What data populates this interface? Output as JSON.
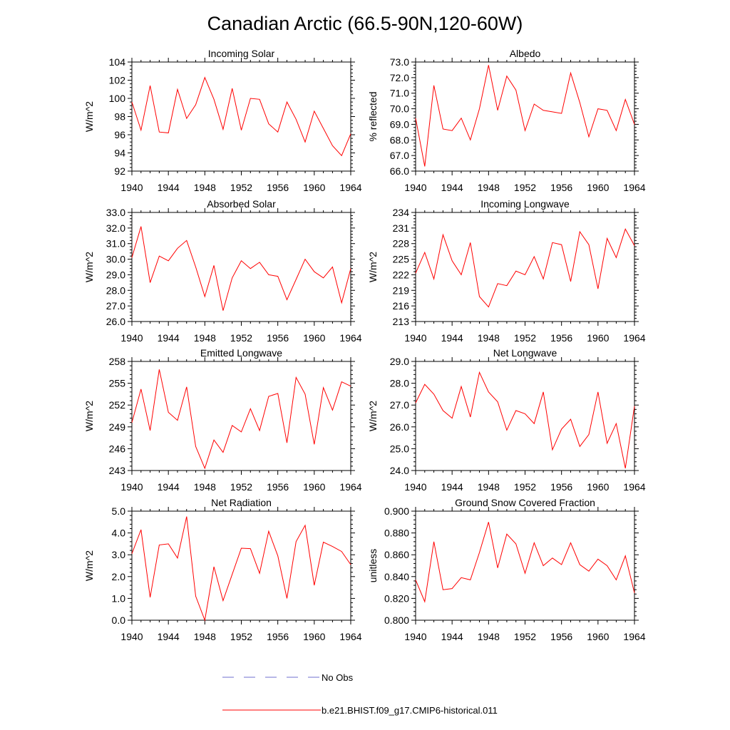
{
  "title": "Canadian Arctic (66.5-90N,120-60W)",
  "colors": {
    "model": "#ff0000",
    "obs": "#6f6fcf",
    "axis": "#000000"
  },
  "legend": {
    "obs_label": "No Obs",
    "model_label": "b.e21.BHIST.f09_g17.CMIP6-historical.011"
  },
  "chart_data": [
    {
      "type": "line",
      "title": "Incoming Solar",
      "ylabel": "W/m^2",
      "xlim": [
        1940,
        1964
      ],
      "ylim": [
        92,
        104
      ],
      "yticks": [
        "92",
        "94",
        "96",
        "98",
        "100",
        "102",
        "104"
      ],
      "xticks": [
        "1940",
        "1944",
        "1948",
        "1952",
        "1956",
        "1960",
        "1964"
      ],
      "x": [
        1940,
        1941,
        1942,
        1943,
        1944,
        1945,
        1946,
        1947,
        1948,
        1949,
        1950,
        1951,
        1952,
        1953,
        1954,
        1955,
        1956,
        1957,
        1958,
        1959,
        1960,
        1961,
        1962,
        1963,
        1964
      ],
      "series": [
        {
          "name": "b.e21.BHIST.f09_g17.CMIP6-historical.011",
          "values": [
            99.6,
            96.5,
            101.4,
            96.3,
            96.2,
            101.0,
            97.8,
            99.3,
            102.3,
            99.9,
            96.6,
            101.1,
            96.5,
            100.0,
            99.9,
            97.2,
            96.3,
            99.6,
            97.7,
            95.2,
            98.6,
            96.7,
            94.8,
            93.7,
            96.1
          ]
        }
      ]
    },
    {
      "type": "line",
      "title": "Albedo",
      "ylabel": "% reflected",
      "xlim": [
        1940,
        1964
      ],
      "ylim": [
        66,
        73
      ],
      "yticks": [
        "66.0",
        "67.0",
        "68.0",
        "69.0",
        "70.0",
        "71.0",
        "72.0",
        "73.0"
      ],
      "xticks": [
        "1940",
        "1944",
        "1948",
        "1952",
        "1956",
        "1960",
        "1964"
      ],
      "x": [
        1940,
        1941,
        1942,
        1943,
        1944,
        1945,
        1946,
        1947,
        1948,
        1949,
        1950,
        1951,
        1952,
        1953,
        1954,
        1955,
        1956,
        1957,
        1958,
        1959,
        1960,
        1961,
        1962,
        1963,
        1964
      ],
      "series": [
        {
          "name": "b.e21.BHIST.f09_g17.CMIP6-historical.011",
          "values": [
            69.4,
            66.3,
            71.5,
            68.7,
            68.6,
            69.4,
            68.0,
            70.0,
            72.8,
            69.9,
            72.1,
            71.2,
            68.6,
            70.3,
            69.9,
            69.8,
            69.7,
            72.3,
            70.4,
            68.2,
            70.0,
            69.9,
            68.6,
            70.6,
            69.0
          ]
        }
      ]
    },
    {
      "type": "line",
      "title": "Absorbed Solar",
      "ylabel": "W/m^2",
      "xlim": [
        1940,
        1964
      ],
      "ylim": [
        26,
        33
      ],
      "yticks": [
        "26.0",
        "27.0",
        "28.0",
        "29.0",
        "30.0",
        "31.0",
        "32.0",
        "33.0"
      ],
      "xticks": [
        "1940",
        "1944",
        "1948",
        "1952",
        "1956",
        "1960",
        "1964"
      ],
      "x": [
        1940,
        1941,
        1942,
        1943,
        1944,
        1945,
        1946,
        1947,
        1948,
        1949,
        1950,
        1951,
        1952,
        1953,
        1954,
        1955,
        1956,
        1957,
        1958,
        1959,
        1960,
        1961,
        1962,
        1963,
        1964
      ],
      "series": [
        {
          "name": "b.e21.BHIST.f09_g17.CMIP6-historical.011",
          "values": [
            30.1,
            32.1,
            28.5,
            30.2,
            29.9,
            30.7,
            31.2,
            29.5,
            27.6,
            29.6,
            26.7,
            28.8,
            29.9,
            29.4,
            29.8,
            29.0,
            28.9,
            27.4,
            28.7,
            30.0,
            29.2,
            28.8,
            29.5,
            27.2,
            29.4
          ]
        }
      ]
    },
    {
      "type": "line",
      "title": "Incoming Longwave",
      "ylabel": "W/m^2",
      "xlim": [
        1940,
        1964
      ],
      "ylim": [
        213,
        234
      ],
      "yticks": [
        "213",
        "216",
        "219",
        "222",
        "225",
        "228",
        "231",
        "234"
      ],
      "xticks": [
        "1940",
        "1944",
        "1948",
        "1952",
        "1956",
        "1960",
        "1964"
      ],
      "x": [
        1940,
        1941,
        1942,
        1943,
        1944,
        1945,
        1946,
        1947,
        1948,
        1949,
        1950,
        1951,
        1952,
        1953,
        1954,
        1955,
        1956,
        1957,
        1958,
        1959,
        1960,
        1961,
        1962,
        1963,
        1964
      ],
      "series": [
        {
          "name": "b.e21.BHIST.f09_g17.CMIP6-historical.011",
          "values": [
            222.3,
            226.3,
            221.2,
            229.7,
            224.7,
            222.0,
            228.2,
            217.8,
            215.8,
            220.3,
            219.9,
            222.7,
            222.0,
            225.5,
            221.2,
            228.2,
            227.8,
            220.7,
            230.3,
            227.8,
            219.3,
            229.0,
            225.3,
            230.8,
            227.6
          ]
        }
      ]
    },
    {
      "type": "line",
      "title": "Emitted Longwave",
      "ylabel": "W/m^2",
      "xlim": [
        1940,
        1964
      ],
      "ylim": [
        243,
        258
      ],
      "yticks": [
        "243",
        "246",
        "249",
        "252",
        "255",
        "258"
      ],
      "xticks": [
        "1940",
        "1944",
        "1948",
        "1952",
        "1956",
        "1960",
        "1964"
      ],
      "x": [
        1940,
        1941,
        1942,
        1943,
        1944,
        1945,
        1946,
        1947,
        1948,
        1949,
        1950,
        1951,
        1952,
        1953,
        1954,
        1955,
        1956,
        1957,
        1958,
        1959,
        1960,
        1961,
        1962,
        1963,
        1964
      ],
      "series": [
        {
          "name": "b.e21.BHIST.f09_g17.CMIP6-historical.011",
          "values": [
            249.6,
            254.2,
            248.5,
            256.9,
            251.0,
            249.9,
            254.5,
            246.3,
            243.3,
            247.2,
            245.5,
            249.2,
            248.3,
            251.5,
            248.5,
            253.2,
            253.6,
            246.8,
            255.8,
            253.5,
            246.6,
            254.4,
            251.3,
            255.2,
            254.6
          ]
        }
      ]
    },
    {
      "type": "line",
      "title": "Net Longwave",
      "ylabel": "W/m^2",
      "xlim": [
        1940,
        1964
      ],
      "ylim": [
        24,
        29
      ],
      "yticks": [
        "24.0",
        "25.0",
        "26.0",
        "27.0",
        "28.0",
        "29.0"
      ],
      "xticks": [
        "1940",
        "1944",
        "1948",
        "1952",
        "1956",
        "1960",
        "1964"
      ],
      "x": [
        1940,
        1941,
        1942,
        1943,
        1944,
        1945,
        1946,
        1947,
        1948,
        1949,
        1950,
        1951,
        1952,
        1953,
        1954,
        1955,
        1956,
        1957,
        1958,
        1959,
        1960,
        1961,
        1962,
        1963,
        1964
      ],
      "series": [
        {
          "name": "b.e21.BHIST.f09_g17.CMIP6-historical.011",
          "values": [
            27.1,
            27.95,
            27.5,
            26.75,
            26.4,
            27.85,
            26.45,
            28.5,
            27.6,
            27.15,
            25.85,
            26.75,
            26.6,
            26.15,
            27.6,
            24.95,
            25.9,
            26.35,
            25.1,
            25.65,
            27.6,
            25.25,
            26.15,
            24.1,
            26.95
          ]
        }
      ]
    },
    {
      "type": "line",
      "title": "Net Radiation",
      "ylabel": "W/m^2",
      "xlim": [
        1940,
        1964
      ],
      "ylim": [
        0,
        5
      ],
      "yticks": [
        "0.0",
        "1.0",
        "2.0",
        "3.0",
        "4.0",
        "5.0"
      ],
      "xticks": [
        "1940",
        "1944",
        "1948",
        "1952",
        "1956",
        "1960",
        "1964"
      ],
      "x": [
        1940,
        1941,
        1942,
        1943,
        1944,
        1945,
        1946,
        1947,
        1948,
        1949,
        1950,
        1951,
        1952,
        1953,
        1954,
        1955,
        1956,
        1957,
        1958,
        1959,
        1960,
        1961,
        1962,
        1963,
        1964
      ],
      "series": [
        {
          "name": "b.e21.BHIST.f09_g17.CMIP6-historical.011",
          "values": [
            3.05,
            4.15,
            1.05,
            3.45,
            3.5,
            2.85,
            4.75,
            1.1,
            0.0,
            2.45,
            0.9,
            2.1,
            3.3,
            3.28,
            2.15,
            4.08,
            2.95,
            1.0,
            3.6,
            4.35,
            1.6,
            3.58,
            3.38,
            3.15,
            2.55
          ]
        }
      ]
    },
    {
      "type": "line",
      "title": "Ground Snow Covered Fraction",
      "ylabel": "unitless",
      "xlim": [
        1940,
        1964
      ],
      "ylim": [
        0.8,
        0.9
      ],
      "yticks": [
        "0.800",
        "0.820",
        "0.840",
        "0.860",
        "0.880",
        "0.900"
      ],
      "xticks": [
        "1940",
        "1944",
        "1948",
        "1952",
        "1956",
        "1960",
        "1964"
      ],
      "x": [
        1940,
        1941,
        1942,
        1943,
        1944,
        1945,
        1946,
        1947,
        1948,
        1949,
        1950,
        1951,
        1952,
        1953,
        1954,
        1955,
        1956,
        1957,
        1958,
        1959,
        1960,
        1961,
        1962,
        1963,
        1964
      ],
      "series": [
        {
          "name": "b.e21.BHIST.f09_g17.CMIP6-historical.011",
          "values": [
            0.837,
            0.817,
            0.872,
            0.828,
            0.829,
            0.839,
            0.837,
            0.862,
            0.89,
            0.848,
            0.879,
            0.87,
            0.843,
            0.871,
            0.85,
            0.857,
            0.851,
            0.871,
            0.851,
            0.845,
            0.856,
            0.85,
            0.837,
            0.859,
            0.825
          ]
        }
      ]
    }
  ]
}
